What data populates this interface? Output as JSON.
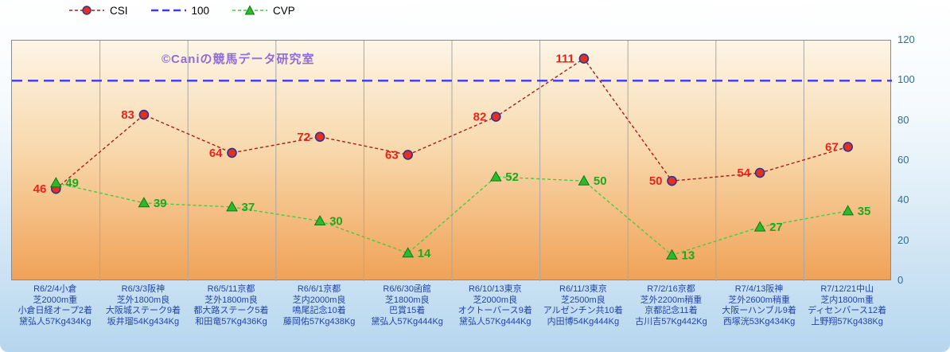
{
  "watermark": "©Caniの競馬データ研究室",
  "legend": {
    "items": [
      {
        "label": "CSI",
        "marker": "circle",
        "line_color": "#9b1c1c",
        "marker_fill": "#e03028",
        "marker_stroke": "#333388"
      },
      {
        "label": "100",
        "marker": "line",
        "line_color": "#3a3af2"
      },
      {
        "label": "CVP",
        "marker": "triangle",
        "line_color": "#44cc44",
        "marker_fill": "#2db82d",
        "marker_stroke": "#117711"
      }
    ]
  },
  "y_axis": {
    "ticks": [
      0,
      20,
      40,
      60,
      80,
      100,
      120
    ],
    "color": "#2e6f95"
  },
  "chart_data": {
    "type": "line",
    "title": "",
    "ylim": [
      0,
      120
    ],
    "grid": "vertical",
    "grid_color": "#a8a8a8",
    "legend_position": "top",
    "x_label_color": "#2344aa",
    "categories": [
      [
        "R6/2/4小倉",
        "芝2000m重",
        "小倉日経オープ2着",
        "黛弘人57Kg434Kg"
      ],
      [
        "R6/3/3阪神",
        "芝外1800m良",
        "大阪城ステーク9着",
        "坂井瑠54Kg434Kg"
      ],
      [
        "R6/5/11京都",
        "芝外1800m良",
        "都大路ステーク5着",
        "和田竜57Kg436Kg"
      ],
      [
        "R6/6/1京都",
        "芝内2000m良",
        "鳴尾記念10着",
        "藤岡佑57Kg438Kg"
      ],
      [
        "R6/6/30函館",
        "芝1800m良",
        "巴賞15着",
        "黛弘人57Kg444Kg"
      ],
      [
        "R6/10/13東京",
        "芝2000m良",
        "オクトーバース9着",
        "黛弘人57Kg444Kg"
      ],
      [
        "R6/11/3東京",
        "芝2500m良",
        "アルゼンチン共10着",
        "内田博54Kg444Kg"
      ],
      [
        "R7/2/16京都",
        "芝外2200m稍重",
        "京都記念11着",
        "古川吉57Kg442Kg"
      ],
      [
        "R7/4/13阪神",
        "芝外2600m稍重",
        "大阪ーハンブル9着",
        "西塚洸53Kg434Kg"
      ],
      [
        "R7/12/21中山",
        "芝内1800m重",
        "ディセンバース12着",
        "上野翔57Kg438Kg"
      ]
    ],
    "series": [
      {
        "name": "CSI",
        "values": [
          46,
          83,
          64,
          72,
          63,
          82,
          111,
          50,
          54,
          67
        ],
        "color": "#a32020",
        "marker": "circle",
        "marker_fill": "#e03028",
        "marker_stroke": "#333388",
        "label_color": "#e8251c",
        "label_side": "left"
      },
      {
        "name": "100",
        "constant": 100,
        "color": "#3a3af2"
      },
      {
        "name": "CVP",
        "values": [
          49,
          39,
          37,
          30,
          14,
          52,
          50,
          13,
          27,
          35
        ],
        "color": "#44cc44",
        "marker": "triangle",
        "marker_fill": "#2db82d",
        "marker_stroke": "#117711",
        "label_color": "#1ea81e",
        "label_side": "right"
      }
    ]
  }
}
